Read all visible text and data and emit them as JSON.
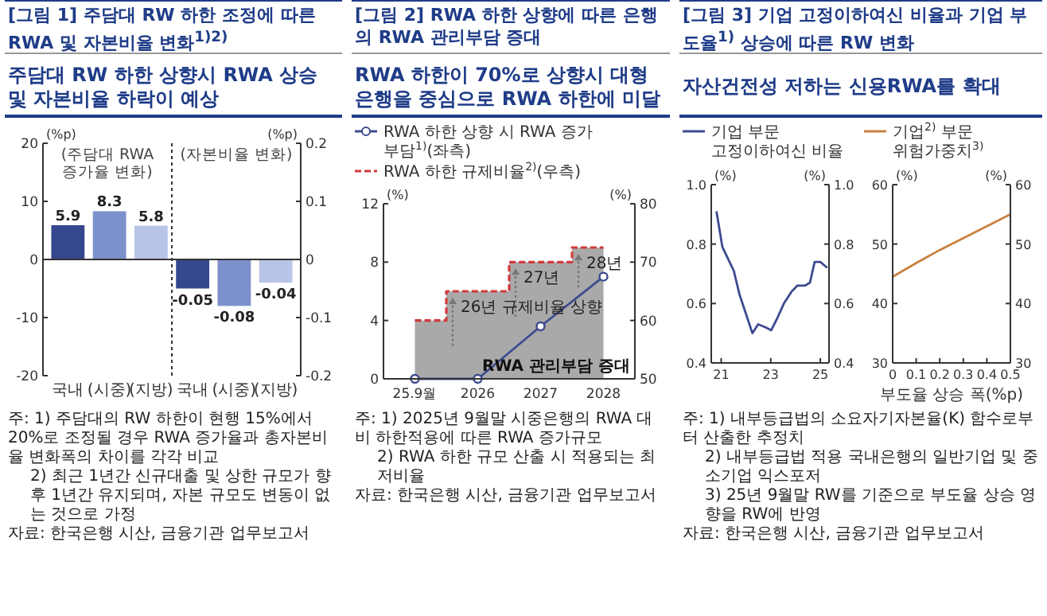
{
  "chart_data": [
    {
      "type": "bar",
      "title": "[그림 1] 주담대 RW 하한 조정에 따른 RWA 및 자본비율 변화$^{1)2)}$",
      "subtitle": "주담대 RW 하한 상향시 RWA 상승 및 자본비율 하락이 예상",
      "ylabel": "(%p)",
      "y2label": "(%p)",
      "categories": [
        "국내",
        "(시중)",
        "(지방)",
        "국내",
        "(시중)",
        "(지방)"
      ],
      "series": [
        {
          "values": [
            5.9,
            8.3,
            5.8,
            null,
            null,
            null
          ],
          "colors": [
            "#34478f",
            "#7d91cc",
            "#b9c5e8",
            null,
            null,
            null
          ]
        },
        {
          "axis": "y2",
          "values": [
            null,
            null,
            null,
            -0.05,
            -0.08,
            -0.04
          ],
          "colors": [
            null,
            null,
            null,
            "#34478f",
            "#7d91cc",
            "#b9c5e8"
          ]
        }
      ],
      "ylim": [
        -20,
        20
      ],
      "yticks": [
        -20,
        -10,
        0,
        10,
        20
      ],
      "y2lim": [
        -0.2,
        0.2
      ],
      "y2ticks": [
        -0.2,
        -0.1,
        0,
        0.1,
        0.2
      ],
      "data_labels": true,
      "annotations": [
        "(주담대 RWA 증가율 변화)",
        "(자본비율 변화)",
        "주: 1) 주담대의 RW 하한이 현행 15%에서 20%로 조정될 경우 RWA 증가율과 총자본비율 변화폭의 차이를 각각 비교",
        "2) 최근 1년간 신규대출 및 상한 규모가 향후 1년간 유지되며, 자본 규모도 변동이 없는 것으로 가정",
        "자료: 한국은행 시산, 금융기관 업무보고서"
      ]
    },
    {
      "type": "line",
      "title": "[그림 2] RWA 하한 상향에 따른 은행의 RWA 관리부담 증대",
      "subtitle": "RWA 하한이 70%로 상향시 대형은행을 중심으로 RWA 하한에 미달",
      "ylabel": "(%)",
      "y2label": "(%)",
      "categories": [
        "25.9월",
        "2026",
        "2027",
        "2028"
      ],
      "series": [
        {
          "name": "RWA 하한 상향 시 RWA 증가 부담$^{1)}$(좌측)",
          "color": "#3d4a8f",
          "marker": "circle",
          "values": [
            0,
            0,
            3.6,
            7.0
          ]
        },
        {
          "type": "area",
          "axis": "y2",
          "color": "#a9a9a9",
          "values": [
            60,
            65,
            70,
            72.5
          ]
        },
        {
          "name": "RWA 하한 규제비율$^{2)}$(우측)",
          "type": "step",
          "axis": "y2",
          "color": "#d23a3a",
          "line_style": "dashed",
          "values": [
            60,
            65,
            70,
            72.5
          ]
        }
      ],
      "ylim": [
        0,
        12
      ],
      "yticks": [
        0,
        4,
        8,
        12
      ],
      "y2lim": [
        50,
        80
      ],
      "y2ticks": [
        50,
        60,
        70,
        80
      ],
      "legend": "top",
      "annotations": [
        "26년 규제비율 상향",
        "27년",
        "28년",
        "RWA 관리부담 증대",
        "주: 1) 2025년 9월말 시중은행의 RWA 대비 하한적용에 따른 RWA 증가규모",
        "2) RWA 하한 규모 산출 시 적용되는 최저비율",
        "자료: 한국은행 시산, 금융기관 업무보고서"
      ]
    },
    {
      "type": "line",
      "title": "[그림 3] 기업 고정이하여신 비율과 기업 부도율$^{1)}$ 상승에 따른 RW 변화",
      "subtitle": "자산건전성 저하는 신용RWA를 확대",
      "ylabel": "(%)",
      "y2label": "(%)",
      "x": [
        2020.81,
        2021.05,
        2021.28,
        2021.51,
        2021.74,
        2021.98,
        2022.26,
        2022.49,
        2022.79,
        2023.02,
        2023.26,
        2023.53,
        2023.84,
        2024.07,
        2024.37,
        2024.58,
        2024.77,
        2025.0,
        2025.28
      ],
      "series": [
        {
          "name": "기업 부문 고정이하여신 비율",
          "color": "#3d4a8f",
          "values": [
            0.91,
            0.79,
            0.75,
            0.71,
            0.63,
            0.57,
            0.5,
            0.53,
            0.52,
            0.51,
            0.55,
            0.6,
            0.64,
            0.66,
            0.66,
            0.67,
            0.74,
            0.74,
            0.72
          ]
        }
      ],
      "xlim": [
        2020.6,
        2025.35
      ],
      "xticks": [
        {
          "value": 2021,
          "label": "21"
        },
        {
          "value": 2023,
          "label": "23"
        },
        {
          "value": 2025,
          "label": "25"
        }
      ],
      "ylim": [
        0.4,
        1.0
      ],
      "yticks": [
        0.4,
        0.6,
        0.8,
        {
          "value": 1,
          "label": "1.0"
        }
      ],
      "y2lim": [
        0.4,
        1.0
      ],
      "y2ticks": [
        0.4,
        0.6,
        0.8,
        {
          "value": 1,
          "label": "1.0"
        }
      ],
      "legend": "top",
      "annotations": [
        "주: 1) 내부등급법의 소요자기자본율(K) 함수로부터 산출한 추정치",
        "2) 내부등급법 적용 국내은행의 일반기업 및 중소기업 익스포저",
        "3) 25년 9월말 RW를 기준으로 부도율 상승 영향을 RW에 반영",
        "자료: 한국은행 시산, 금융기관 업무보고서"
      ]
    },
    {
      "type": "line",
      "xlabel": "부도율 상승 폭(%p)",
      "ylabel": "(%)",
      "y2label": "(%)",
      "x": [
        0,
        0.1,
        0.2,
        0.3,
        0.4,
        0.5
      ],
      "series": [
        {
          "name": "기업$^{2)}$ 부문 위험가중치$^{3)}$",
          "color": "#c9803f",
          "values": [
            44.5,
            46.8,
            49,
            51,
            53,
            55
          ]
        }
      ],
      "xlim": [
        0,
        0.5
      ],
      "xticks": [
        0,
        0.1,
        0.2,
        0.3,
        0.4,
        0.5
      ],
      "ylim": [
        30,
        60
      ],
      "yticks": [
        30,
        40,
        50,
        60
      ],
      "y2lim": [
        30,
        60
      ],
      "y2ticks": [
        30,
        40,
        50,
        60
      ],
      "legend": "top"
    }
  ]
}
